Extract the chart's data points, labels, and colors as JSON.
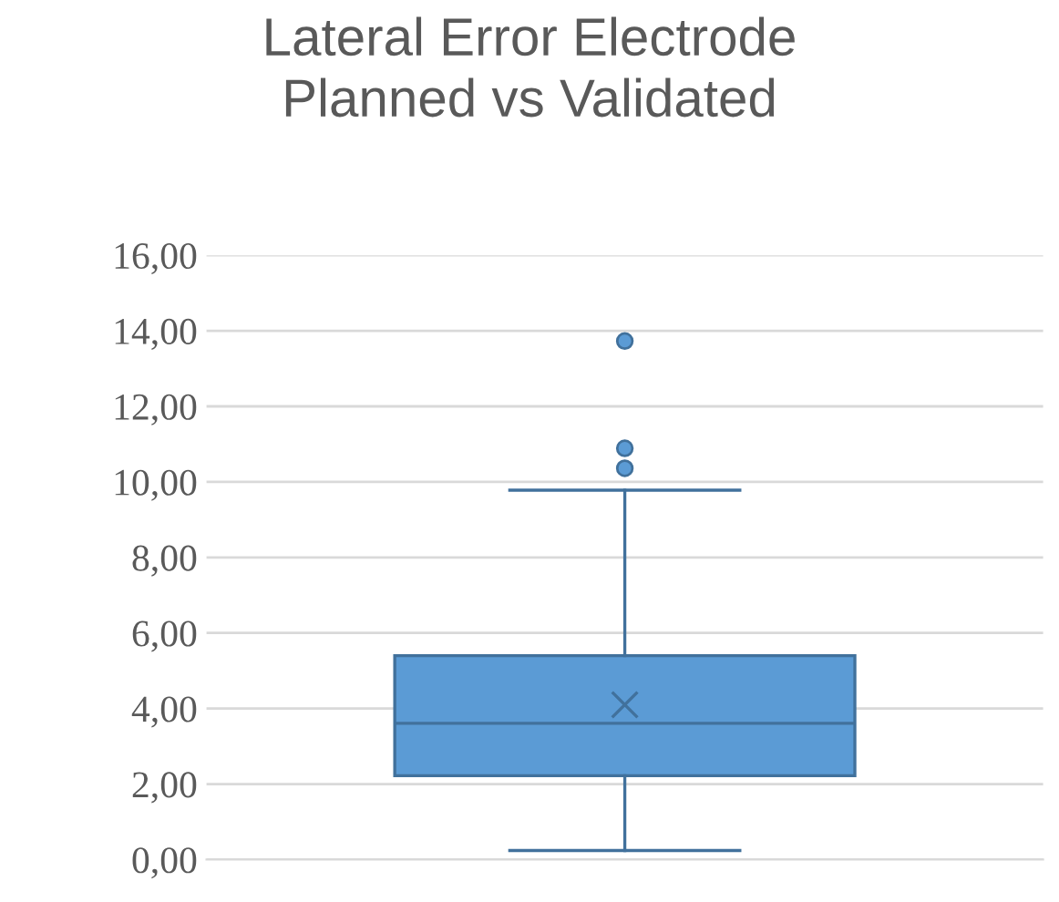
{
  "chart_data": {
    "type": "box",
    "title": "Lateral Error Electrode\nPlanned vs Validated",
    "categories": [
      null
    ],
    "series": [
      {
        "color": "#5b9bd5",
        "boxes": [
          {
            "low": 0.24,
            "q1": 2.22,
            "median": 3.61,
            "q3": 5.4,
            "high": 9.78,
            "mean": 4.1,
            "outliers": [
              10.36,
              10.89,
              13.73
            ]
          }
        ]
      }
    ],
    "ylim": [
      0,
      16
    ],
    "yticks": [
      {
        "value": 0,
        "label": "0,00"
      },
      {
        "value": 2,
        "label": "2,00"
      },
      {
        "value": 4,
        "label": "4,00"
      },
      {
        "value": 6,
        "label": "6,00"
      },
      {
        "value": 8,
        "label": "8,00"
      },
      {
        "value": 10,
        "label": "10,00"
      },
      {
        "value": 12,
        "label": "12,00"
      },
      {
        "value": 14,
        "label": "14,00"
      },
      {
        "value": 16,
        "label": "16,00"
      }
    ],
    "grid": "y",
    "legend": false
  }
}
